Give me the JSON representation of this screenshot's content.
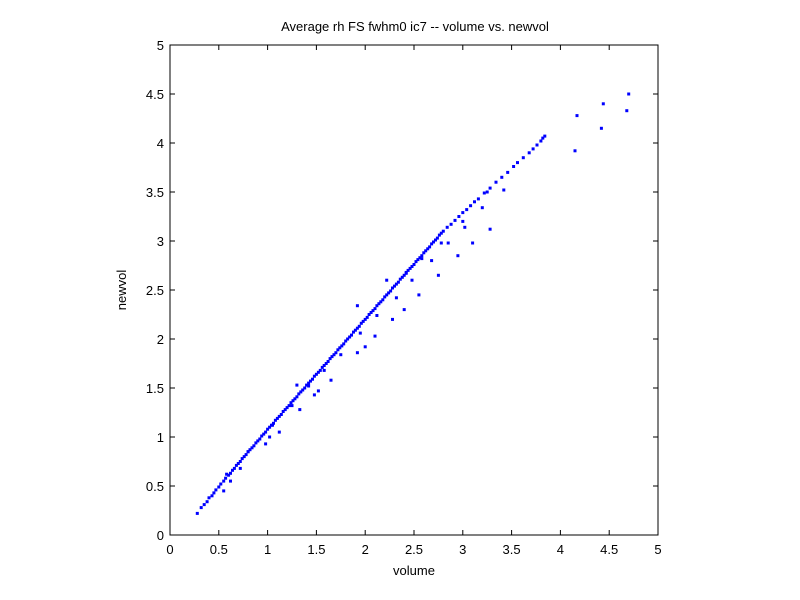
{
  "chart_data": {
    "type": "scatter",
    "title": "Average rh FS fwhm0 ic7 -- volume vs. newvol",
    "xlabel": "volume",
    "ylabel": "newvol",
    "xlim": [
      0,
      5
    ],
    "ylim": [
      0,
      5
    ],
    "xticks": [
      "0",
      "0.5",
      "1",
      "1.5",
      "2",
      "2.5",
      "3",
      "3.5",
      "4",
      "4.5",
      "5"
    ],
    "yticks": [
      "0",
      "0.5",
      "1",
      "1.5",
      "2",
      "2.5",
      "3",
      "3.5",
      "4",
      "4.5",
      "5"
    ],
    "grid": false,
    "marker_color": "#0000ff",
    "series": [
      {
        "x": [
          0.28,
          0.32,
          0.35,
          0.38,
          0.4,
          0.43,
          0.45,
          0.47,
          0.5,
          0.52,
          0.55,
          0.57,
          0.6,
          0.62,
          0.64,
          0.66,
          0.68,
          0.7,
          0.72,
          0.74,
          0.76,
          0.78,
          0.8,
          0.82,
          0.84,
          0.86,
          0.88,
          0.9,
          0.92,
          0.94,
          0.96,
          0.98,
          1.0,
          1.02,
          1.04,
          1.06,
          1.08,
          1.1,
          1.12,
          1.14,
          1.16,
          1.18,
          1.2,
          1.22,
          1.24,
          1.26,
          1.28,
          1.3,
          1.32,
          1.34,
          1.36,
          1.38,
          1.4,
          1.42,
          1.44,
          1.46,
          1.48,
          1.5,
          1.52,
          1.54,
          1.56,
          1.58,
          1.6,
          1.62,
          1.64,
          1.66,
          1.68,
          1.7,
          1.72,
          1.74,
          1.76,
          1.78,
          1.8,
          1.82,
          1.84,
          1.86,
          1.88,
          1.9,
          1.92,
          1.94,
          1.96,
          1.98,
          2.0,
          2.02,
          2.04,
          2.06,
          2.08,
          2.1,
          2.12,
          2.14,
          2.16,
          2.18,
          2.2,
          2.22,
          2.24,
          2.26,
          2.28,
          2.3,
          2.32,
          2.34,
          2.36,
          2.38,
          2.4,
          2.42,
          2.44,
          2.46,
          2.48,
          2.5,
          2.52,
          2.54,
          2.56,
          2.58,
          2.6,
          2.62,
          2.64,
          2.66,
          2.68,
          2.7,
          2.72,
          2.74,
          2.76,
          2.78,
          2.8,
          2.84,
          2.88,
          2.92,
          2.96,
          3.0,
          3.04,
          3.08,
          3.12,
          3.16,
          3.22,
          3.28,
          3.34,
          3.4,
          3.46,
          3.52,
          3.56,
          3.62,
          3.68,
          3.72,
          3.76,
          3.8,
          3.82,
          3.84,
          4.15,
          4.17,
          4.42,
          4.44,
          4.68,
          4.7,
          0.55,
          0.72,
          0.98,
          1.12,
          1.33,
          1.52,
          1.65,
          1.92,
          2.1,
          2.28,
          2.4,
          2.55,
          2.75,
          2.95,
          3.1,
          3.28,
          0.58,
          0.8,
          1.05,
          1.25,
          1.42,
          1.58,
          1.75,
          1.95,
          2.12,
          2.32,
          2.48,
          2.68,
          2.85,
          3.02,
          3.2,
          3.42,
          1.3,
          1.92,
          2.22,
          2.42,
          2.58,
          2.78,
          3.0,
          3.25,
          0.62,
          1.02,
          1.48,
          2.0
        ],
        "y": [
          0.22,
          0.28,
          0.31,
          0.34,
          0.38,
          0.4,
          0.43,
          0.46,
          0.49,
          0.52,
          0.55,
          0.58,
          0.61,
          0.63,
          0.66,
          0.68,
          0.71,
          0.73,
          0.75,
          0.78,
          0.8,
          0.82,
          0.85,
          0.87,
          0.89,
          0.91,
          0.94,
          0.96,
          0.98,
          1.01,
          1.03,
          1.05,
          1.08,
          1.1,
          1.12,
          1.14,
          1.17,
          1.19,
          1.21,
          1.23,
          1.26,
          1.28,
          1.3,
          1.32,
          1.35,
          1.37,
          1.39,
          1.41,
          1.44,
          1.46,
          1.48,
          1.5,
          1.53,
          1.55,
          1.57,
          1.59,
          1.62,
          1.64,
          1.66,
          1.68,
          1.71,
          1.73,
          1.75,
          1.77,
          1.8,
          1.82,
          1.84,
          1.86,
          1.89,
          1.91,
          1.93,
          1.95,
          1.98,
          2.0,
          2.02,
          2.04,
          2.07,
          2.09,
          2.11,
          2.13,
          2.16,
          2.18,
          2.2,
          2.22,
          2.25,
          2.27,
          2.29,
          2.31,
          2.34,
          2.36,
          2.38,
          2.4,
          2.43,
          2.45,
          2.47,
          2.49,
          2.52,
          2.54,
          2.56,
          2.58,
          2.61,
          2.63,
          2.65,
          2.67,
          2.7,
          2.72,
          2.74,
          2.76,
          2.79,
          2.81,
          2.83,
          2.85,
          2.88,
          2.9,
          2.92,
          2.94,
          2.97,
          2.99,
          3.01,
          3.03,
          3.06,
          3.08,
          3.1,
          3.14,
          3.17,
          3.21,
          3.25,
          3.29,
          3.32,
          3.36,
          3.4,
          3.43,
          3.49,
          3.54,
          3.6,
          3.65,
          3.7,
          3.76,
          3.8,
          3.85,
          3.9,
          3.94,
          3.98,
          4.02,
          4.05,
          4.07,
          3.92,
          4.28,
          4.15,
          4.4,
          4.33,
          4.5,
          0.45,
          0.68,
          0.93,
          1.05,
          1.28,
          1.47,
          1.58,
          1.86,
          2.03,
          2.2,
          2.3,
          2.45,
          2.65,
          2.85,
          2.98,
          3.12,
          0.62,
          0.85,
          1.12,
          1.32,
          1.52,
          1.68,
          1.84,
          2.06,
          2.24,
          2.42,
          2.6,
          2.8,
          2.98,
          3.14,
          3.34,
          3.52,
          1.53,
          2.34,
          2.6,
          2.68,
          2.82,
          2.98,
          3.2,
          3.5,
          0.55,
          1.0,
          1.43,
          1.92
        ]
      }
    ]
  }
}
